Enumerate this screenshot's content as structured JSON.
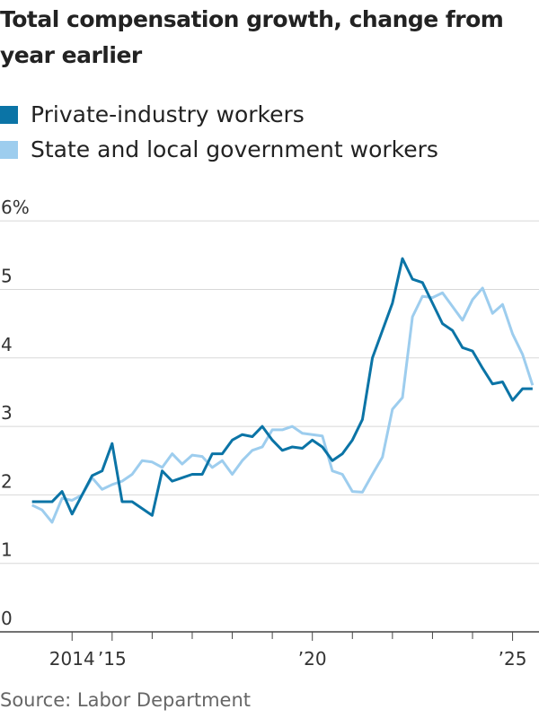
{
  "chart_data": {
    "type": "line",
    "title": "Total compensation growth, change from year earlier",
    "source": "Source: Labor Department",
    "x": [
      2013,
      2013.25,
      2013.5,
      2013.75,
      2014,
      2014.25,
      2014.5,
      2014.75,
      2015,
      2015.25,
      2015.5,
      2015.75,
      2016,
      2016.25,
      2016.5,
      2016.75,
      2017,
      2017.25,
      2017.5,
      2017.75,
      2018,
      2018.25,
      2018.5,
      2018.75,
      2019,
      2019.25,
      2019.5,
      2019.75,
      2020,
      2020.25,
      2020.5,
      2020.75,
      2021,
      2021.25,
      2021.5,
      2021.75,
      2022,
      2022.25,
      2022.5,
      2022.75,
      2023,
      2023.25,
      2023.5,
      2023.75,
      2024,
      2024.25,
      2024.5,
      2024.75,
      2025,
      2025.25,
      2025.5
    ],
    "series": [
      {
        "name": "Private-industry workers",
        "color": "#0b74a6",
        "values": [
          1.9,
          1.9,
          1.9,
          2.05,
          1.72,
          2.0,
          2.28,
          2.35,
          2.75,
          1.9,
          1.9,
          1.8,
          1.7,
          2.35,
          2.2,
          2.25,
          2.3,
          2.3,
          2.6,
          2.6,
          2.8,
          2.88,
          2.85,
          3.0,
          2.8,
          2.65,
          2.7,
          2.68,
          2.8,
          2.7,
          2.5,
          2.6,
          2.8,
          3.1,
          4.0,
          4.4,
          4.8,
          5.45,
          5.15,
          5.1,
          4.8,
          4.5,
          4.4,
          4.15,
          4.1,
          3.85,
          3.62,
          3.65,
          3.38,
          3.55,
          3.55
        ]
      },
      {
        "name": "State and local government workers",
        "color": "#9dcdee",
        "values": [
          1.85,
          1.78,
          1.6,
          1.95,
          1.92,
          2.0,
          2.25,
          2.08,
          2.15,
          2.2,
          2.3,
          2.5,
          2.48,
          2.4,
          2.6,
          2.45,
          2.58,
          2.56,
          2.4,
          2.5,
          2.3,
          2.5,
          2.65,
          2.7,
          2.95,
          2.95,
          3.0,
          2.9,
          2.88,
          2.86,
          2.35,
          2.3,
          2.05,
          2.04,
          2.3,
          2.55,
          3.25,
          3.42,
          4.6,
          4.9,
          4.88,
          4.95,
          4.75,
          4.55,
          4.85,
          5.02,
          4.65,
          4.78,
          4.35,
          4.05,
          3.6
        ]
      }
    ],
    "xlim": [
      2012.2,
      2025.66
    ],
    "xticks": [
      {
        "value": 2014,
        "label": "2014"
      },
      {
        "value": 2015,
        "label": "’15"
      },
      {
        "value": 2020,
        "label": "’20"
      },
      {
        "value": 2025,
        "label": "’25"
      }
    ],
    "xminor_ticks": [
      2016,
      2017,
      2018,
      2019,
      2021,
      2022,
      2023,
      2024
    ],
    "ylim": [
      0,
      6.2
    ],
    "yticks": [
      0,
      1,
      2,
      3,
      4,
      5,
      {
        "value": 6,
        "label": "6%"
      }
    ],
    "grid": true
  }
}
